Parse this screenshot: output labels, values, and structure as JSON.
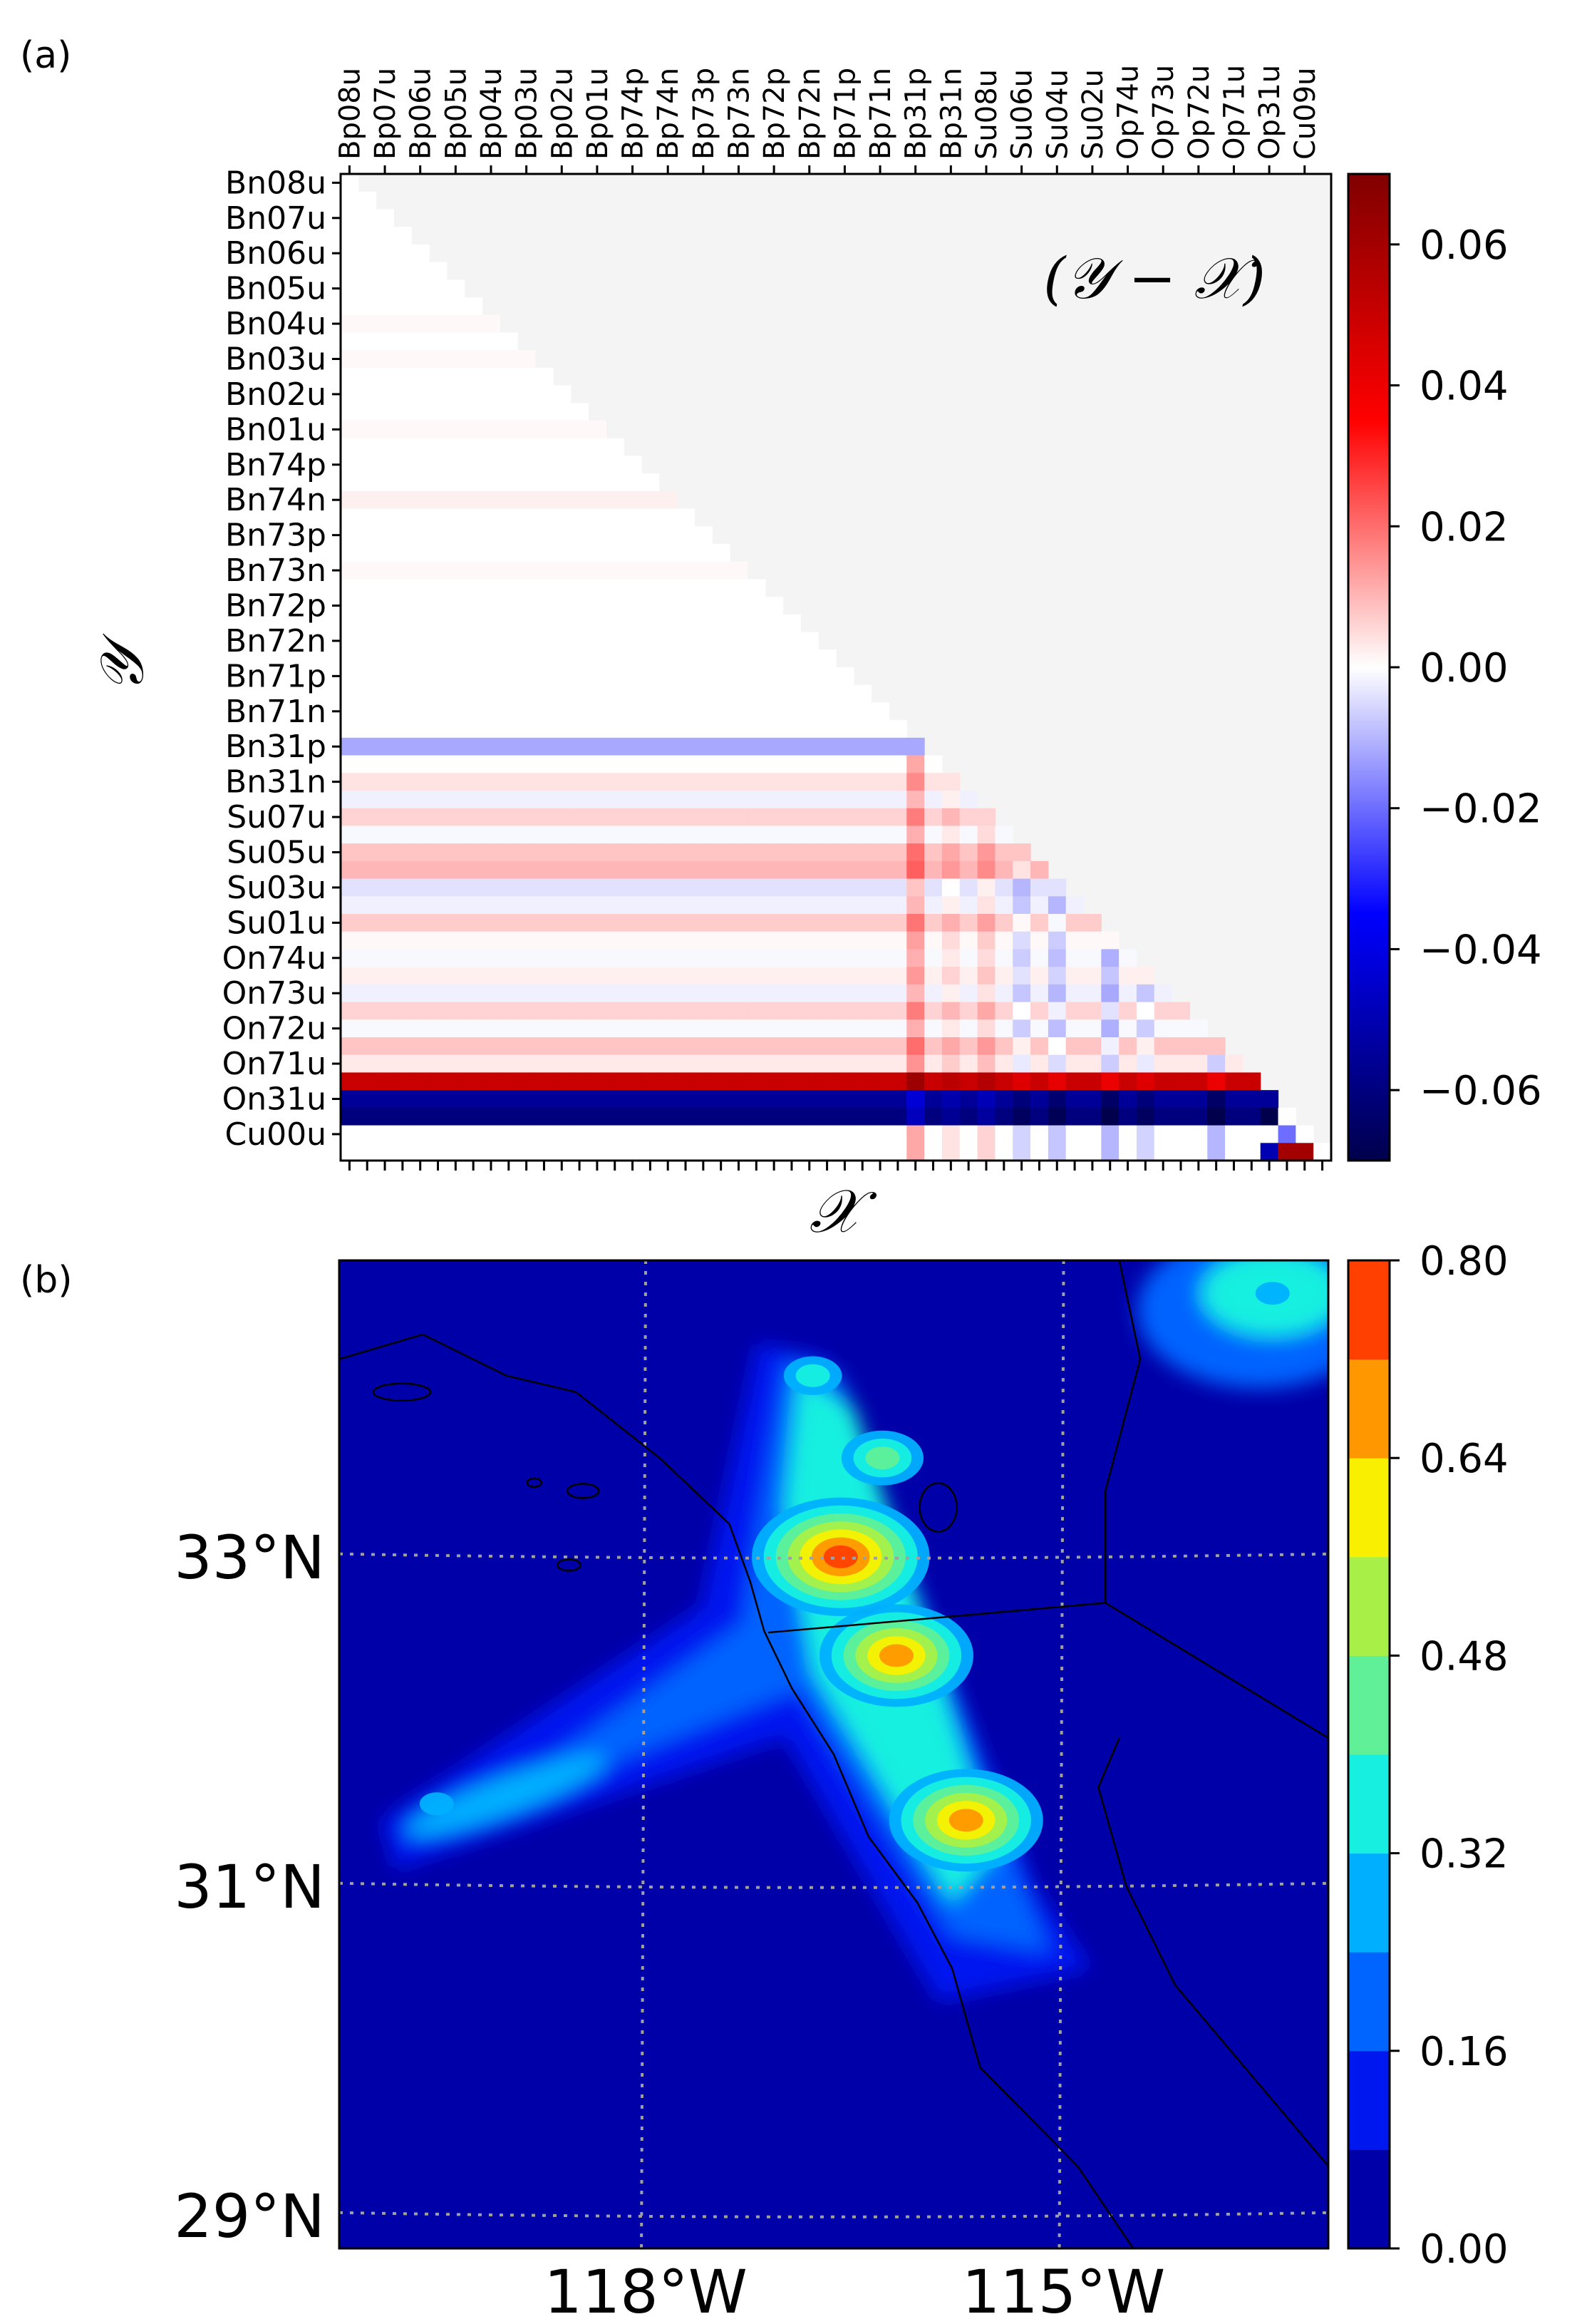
{
  "panels": {
    "a": {
      "letter": "(a)"
    },
    "b": {
      "letter": "(b)"
    }
  },
  "chart_data": [
    {
      "type": "heatmap",
      "panel": "(a)",
      "annotation": "(𝒴 − 𝒳)",
      "xlabel": "𝒳",
      "ylabel": "𝒴",
      "x_tick_labels": [
        "Bp08u",
        "Bp07u",
        "Bp06u",
        "Bp05u",
        "Bp04u",
        "Bp03u",
        "Bp02u",
        "Bp01u",
        "Bp74p",
        "Bp74n",
        "Bp73p",
        "Bp73n",
        "Bp72p",
        "Bp72n",
        "Bp71p",
        "Bp71n",
        "Bp31p",
        "Bp31n",
        "Su08u",
        "Su06u",
        "Su04u",
        "Su02u",
        "Op74u",
        "Op73u",
        "Op72u",
        "Op71u",
        "Op31u",
        "Cu09u"
      ],
      "y_tick_labels": [
        "Bn08u",
        "Bn07u",
        "Bn06u",
        "Bn05u",
        "Bn04u",
        "Bn03u",
        "Bn02u",
        "Bn01u",
        "Bn74p",
        "Bn74n",
        "Bn73p",
        "Bn73n",
        "Bn72p",
        "Bn72n",
        "Bn71p",
        "Bn71n",
        "Bn31p",
        "Bn31n",
        "Su07u",
        "Su05u",
        "Su03u",
        "Su01u",
        "On74u",
        "On73u",
        "On72u",
        "On71u",
        "On31u",
        "Cu00u"
      ],
      "grid_size": 56,
      "triangle": "lower",
      "colorbar": {
        "colormap": "seismic",
        "range": [
          -0.07,
          0.07
        ],
        "ticks": [
          "0.06",
          "0.04",
          "0.02",
          "0.00",
          "−0.02",
          "−0.04",
          "−0.06"
        ],
        "tick_values": [
          0.06,
          0.04,
          0.02,
          0.0,
          -0.02,
          -0.04,
          -0.06
        ]
      },
      "row_values": [
        0.0,
        0.0,
        0.0,
        0.0,
        0.0,
        0.0,
        0.0,
        0.0,
        0.001,
        0.0,
        0.001,
        0.0,
        0.0,
        0.0,
        0.001,
        0.0,
        0.0,
        0.0,
        0.002,
        0.0,
        0.0,
        0.0,
        0.001,
        0.0,
        0.0,
        0.0,
        0.0,
        0.0,
        0.0,
        0.0,
        0.0,
        0.0,
        -0.012,
        0.0,
        0.004,
        -0.002,
        0.006,
        -0.001,
        0.008,
        0.01,
        -0.004,
        -0.002,
        0.007,
        0.001,
        -0.001,
        0.002,
        -0.002,
        0.006,
        -0.001,
        0.008,
        0.003,
        0.05,
        -0.055,
        -0.06,
        0.0,
        0.0
      ],
      "column_accents": [
        {
          "column": 32,
          "value": 0.012
        },
        {
          "column": 34,
          "value": 0.004
        },
        {
          "column": 36,
          "value": 0.006
        },
        {
          "column": 38,
          "value": -0.006
        },
        {
          "column": 40,
          "value": -0.008
        },
        {
          "column": 43,
          "value": -0.01
        },
        {
          "column": 45,
          "value": -0.006
        },
        {
          "column": 49,
          "value": -0.01
        }
      ],
      "strong_cells": [
        {
          "row": 53,
          "col": 52,
          "value": -0.07
        },
        {
          "row": 53,
          "col": 53,
          "value": 0.0
        },
        {
          "row": 54,
          "col": 53,
          "value": -0.02
        },
        {
          "row": 55,
          "col": 52,
          "value": -0.05
        },
        {
          "row": 55,
          "col": 53,
          "value": 0.06
        },
        {
          "row": 55,
          "col": 54,
          "value": 0.06
        },
        {
          "row": 55,
          "col": 55,
          "value": 0.0
        }
      ]
    },
    {
      "type": "heatmap",
      "panel": "(b)",
      "kind": "map-contour",
      "x_tick_labels": [
        "118°W",
        "115°W"
      ],
      "x_tick_values": [
        -118,
        -115
      ],
      "y_tick_labels": [
        "33°N",
        "31°N",
        "29°N"
      ],
      "y_tick_values": [
        33,
        31,
        29
      ],
      "lon_range": [
        -120.2,
        -113.1
      ],
      "lat_range": [
        28.8,
        34.8
      ],
      "grid": true,
      "levels": [
        0.0,
        0.08,
        0.16,
        0.24,
        0.32,
        0.4,
        0.48,
        0.56,
        0.64,
        0.72,
        0.8
      ],
      "level_colors": [
        "#0000a8",
        "#0018f0",
        "#0064ff",
        "#00b0ff",
        "#17f0e0",
        "#5ff098",
        "#a8f048",
        "#f8f000",
        "#ff9800",
        "#ff4000",
        "#c00000"
      ],
      "colorbar": {
        "range": [
          0.0,
          0.8
        ],
        "ticks": [
          "0.80",
          "0.64",
          "0.48",
          "0.32",
          "0.16",
          "0.00"
        ],
        "tick_values": [
          0.8,
          0.64,
          0.48,
          0.32,
          0.16,
          0.0
        ]
      },
      "field_centers": [
        {
          "lon": -116.6,
          "lat": 33.0,
          "value": 0.78
        },
        {
          "lon": -116.2,
          "lat": 32.4,
          "value": 0.66
        },
        {
          "lon": -115.7,
          "lat": 31.4,
          "value": 0.68
        },
        {
          "lon": -116.3,
          "lat": 33.6,
          "value": 0.45
        },
        {
          "lon": -116.8,
          "lat": 34.1,
          "value": 0.34
        },
        {
          "lon": -119.5,
          "lat": 31.5,
          "value": 0.3
        },
        {
          "lon": -113.5,
          "lat": 34.6,
          "value": 0.3
        }
      ]
    }
  ]
}
